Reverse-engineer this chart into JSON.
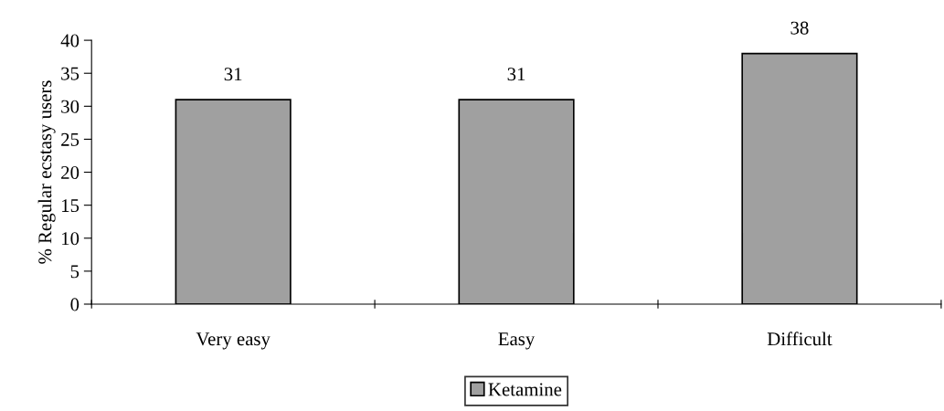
{
  "chart_data": {
    "type": "bar",
    "ylabel": "% Regular ecstasy users",
    "categories": [
      "Very easy",
      "Easy",
      "Difficult"
    ],
    "series": [
      {
        "name": "Ketamine",
        "color": "#a0a0a0",
        "values": [
          31,
          31,
          38
        ]
      }
    ],
    "ylim": [
      0,
      40
    ],
    "yticks": [
      0,
      5,
      10,
      15,
      20,
      25,
      30,
      35,
      40
    ],
    "data_labels": true,
    "grid": false,
    "legend": "bottom"
  }
}
